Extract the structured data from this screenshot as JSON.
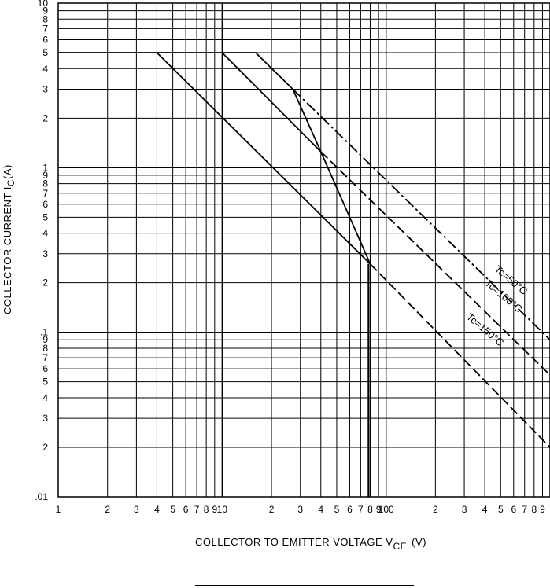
{
  "chart_data": {
    "type": "line",
    "xscale": "log",
    "yscale": "log",
    "xlim": [
      1,
      1000
    ],
    "ylim": [
      0.01,
      10
    ],
    "grid": true,
    "xlabel_main": "COLLECTOR TO EMITTER VOLTAGE V",
    "xlabel_sub": "CE",
    "xlabel_unit": "(V)",
    "ylabel_main": "COLLECTOR CURRENT I",
    "ylabel_sub": "C",
    "ylabel_unit": "(A)",
    "x_ticks": [
      {
        "v": 1,
        "t": "1"
      },
      {
        "v": 2,
        "t": "2"
      },
      {
        "v": 3,
        "t": "3"
      },
      {
        "v": 4,
        "t": "4"
      },
      {
        "v": 5,
        "t": "5"
      },
      {
        "v": 6,
        "t": "6"
      },
      {
        "v": 7,
        "t": "7"
      },
      {
        "v": 8,
        "t": "8"
      },
      {
        "v": 9,
        "t": "9"
      },
      {
        "v": 10,
        "t": "10"
      },
      {
        "v": 20,
        "t": "2"
      },
      {
        "v": 30,
        "t": "3"
      },
      {
        "v": 40,
        "t": "4"
      },
      {
        "v": 50,
        "t": "5"
      },
      {
        "v": 60,
        "t": "6"
      },
      {
        "v": 70,
        "t": "7"
      },
      {
        "v": 80,
        "t": "8"
      },
      {
        "v": 90,
        "t": "9"
      },
      {
        "v": 100,
        "t": "100"
      },
      {
        "v": 200,
        "t": "2"
      },
      {
        "v": 300,
        "t": "3"
      },
      {
        "v": 400,
        "t": "4"
      },
      {
        "v": 500,
        "t": "5"
      },
      {
        "v": 600,
        "t": "6"
      },
      {
        "v": 700,
        "t": "7"
      },
      {
        "v": 800,
        "t": "8"
      },
      {
        "v": 900,
        "t": "9"
      }
    ],
    "y_ticks": [
      {
        "v": 0.01,
        "t": ".01"
      },
      {
        "v": 0.02,
        "t": "2"
      },
      {
        "v": 0.03,
        "t": "3"
      },
      {
        "v": 0.04,
        "t": "4"
      },
      {
        "v": 0.05,
        "t": "5"
      },
      {
        "v": 0.06,
        "t": "6"
      },
      {
        "v": 0.07,
        "t": "7"
      },
      {
        "v": 0.08,
        "t": "8"
      },
      {
        "v": 0.09,
        "t": "9"
      },
      {
        "v": 0.1,
        "t": ".1"
      },
      {
        "v": 0.2,
        "t": "2"
      },
      {
        "v": 0.3,
        "t": "3"
      },
      {
        "v": 0.4,
        "t": "4"
      },
      {
        "v": 0.5,
        "t": "5"
      },
      {
        "v": 0.6,
        "t": "6"
      },
      {
        "v": 0.7,
        "t": "7"
      },
      {
        "v": 0.8,
        "t": "8"
      },
      {
        "v": 0.9,
        "t": "9"
      },
      {
        "v": 1,
        "t": "1"
      },
      {
        "v": 2,
        "t": "2"
      },
      {
        "v": 3,
        "t": "3"
      },
      {
        "v": 4,
        "t": "4"
      },
      {
        "v": 5,
        "t": "5"
      },
      {
        "v": 6,
        "t": "6"
      },
      {
        "v": 7,
        "t": "7"
      },
      {
        "v": 8,
        "t": "8"
      },
      {
        "v": 9,
        "t": "9"
      },
      {
        "v": 10,
        "t": "10"
      }
    ],
    "series": [
      {
        "name": "Tc=50°C",
        "segments": [
          {
            "style": "solid",
            "points": [
              [
                1,
                5
              ],
              [
                16,
                5
              ],
              [
                27,
                3
              ]
            ]
          },
          {
            "style": "dashdot",
            "points": [
              [
                27,
                3
              ],
              [
                1000,
                0.09
              ]
            ]
          }
        ]
      },
      {
        "name": "Tc=100°C",
        "segments": [
          {
            "style": "solid",
            "points": [
              [
                10,
                5
              ],
              [
                40,
                1.25
              ]
            ]
          },
          {
            "style": "dashed",
            "points": [
              [
                40,
                1.25
              ],
              [
                1000,
                0.055
              ]
            ]
          }
        ]
      },
      {
        "name": "Tc=150°C",
        "segments": [
          {
            "style": "solid",
            "points": [
              [
                4,
                5
              ],
              [
                80,
                0.26
              ]
            ]
          },
          {
            "style": "dashed",
            "points": [
              [
                80,
                0.26
              ],
              [
                1000,
                0.02
              ]
            ]
          }
        ]
      },
      {
        "name": "",
        "segments": [
          {
            "style": "solid",
            "points": [
              [
                27,
                3
              ],
              [
                40,
                1.25
              ],
              [
                80,
                0.26
              ],
              [
                80,
                0.01
              ]
            ]
          },
          {
            "style": "solid",
            "points": [
              [
                78,
                0.26
              ],
              [
                78,
                0.01
              ]
            ]
          }
        ]
      }
    ],
    "annotations": [
      {
        "id": "tc50",
        "text": "Tc=50°C",
        "x": 560,
        "y": 0.2
      },
      {
        "id": "tc100",
        "text": "Tc=100°C",
        "x": 505,
        "y": 0.16
      },
      {
        "id": "tc150",
        "text": "Tc=150°C",
        "x": 390,
        "y": 0.1
      }
    ]
  }
}
